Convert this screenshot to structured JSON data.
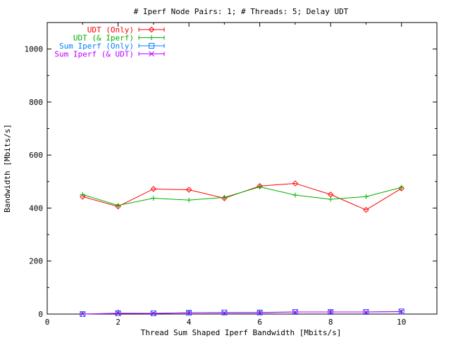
{
  "chart_data": {
    "type": "line",
    "title": "# Iperf Node Pairs: 1; # Threads: 5; Delay UDT",
    "xlabel": "Thread Sum Shaped Iperf Bandwidth [Mbits/s]",
    "ylabel": "Bandwidth [Mbits/s]",
    "xlim": [
      0,
      11
    ],
    "ylim": [
      0,
      1100
    ],
    "xticks": [
      0,
      2,
      4,
      6,
      8,
      10
    ],
    "yticks": [
      0,
      200,
      400,
      600,
      800,
      1000
    ],
    "legend_position": "top-left",
    "grid": false,
    "series": [
      {
        "name": "UDT (Only)",
        "color": "#ff0000",
        "marker": "diamond",
        "x": [
          1,
          2,
          3,
          4,
          5,
          6,
          7,
          8,
          9,
          10
        ],
        "y": [
          443,
          406,
          472,
          469,
          437,
          483,
          493,
          451,
          393,
          474
        ]
      },
      {
        "name": "UDT (& Iperf)",
        "color": "#00b000",
        "marker": "plus",
        "x": [
          1,
          2,
          3,
          4,
          5,
          6,
          7,
          8,
          9,
          10
        ],
        "y": [
          451,
          410,
          437,
          430,
          440,
          480,
          449,
          433,
          443,
          478
        ]
      },
      {
        "name": "Sum Iperf (Only)",
        "color": "#0080ff",
        "marker": "square",
        "x": [
          1,
          2,
          3,
          4,
          5,
          6,
          7,
          8,
          9,
          10
        ],
        "y": [
          0,
          3,
          3,
          5,
          6,
          6,
          8,
          8,
          8,
          10
        ]
      },
      {
        "name": "Sum Iperf (& UDT)",
        "color": "#c000ff",
        "marker": "x",
        "x": [
          1,
          2,
          3,
          4,
          5,
          6,
          7,
          8,
          9,
          10
        ],
        "y": [
          0,
          3,
          2,
          5,
          5,
          5,
          8,
          8,
          8,
          9
        ]
      }
    ]
  }
}
